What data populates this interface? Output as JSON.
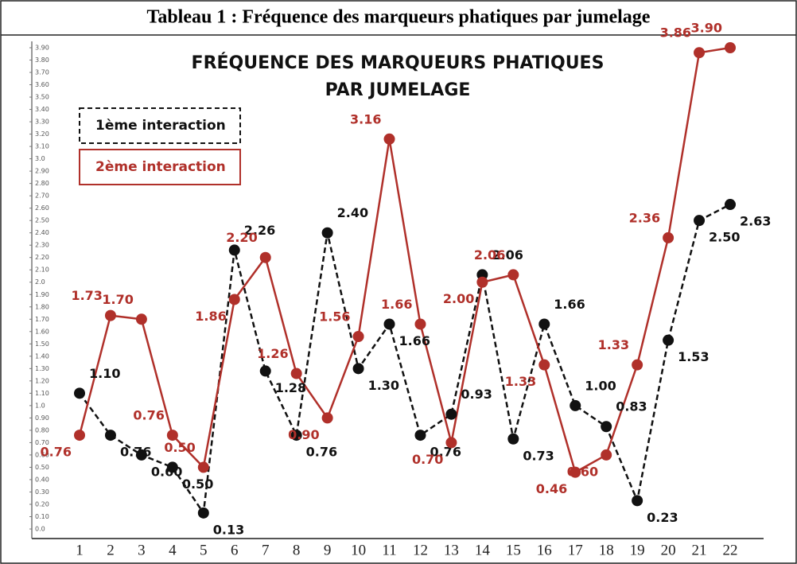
{
  "header": {
    "title": "Tableau 1 : Fréquence des marqueurs phatiques par jumelage"
  },
  "chart_data": {
    "type": "line",
    "title": [
      "FRÉQUENCE DES MARQUEURS PHATIQUES",
      "PAR JUMELAGE"
    ],
    "categories": [
      1,
      2,
      3,
      4,
      5,
      6,
      7,
      8,
      9,
      10,
      11,
      12,
      13,
      14,
      15,
      16,
      17,
      18,
      19,
      20,
      21,
      22
    ],
    "series": [
      {
        "name": "1ème interaction",
        "color": "#111111",
        "dashed": true,
        "values": [
          1.1,
          0.76,
          0.6,
          0.5,
          0.13,
          2.26,
          1.28,
          0.76,
          2.4,
          1.3,
          1.66,
          0.76,
          0.93,
          2.06,
          0.73,
          1.66,
          1.0,
          0.83,
          0.23,
          1.53,
          2.5,
          2.63
        ],
        "value_labels": [
          "1.10",
          "0.76",
          "0.60",
          "0.50",
          "0.13",
          "2.26",
          "1.28",
          "0.76",
          "2.40",
          "1.30",
          "1.66",
          "0.76",
          "0.93",
          "2.06",
          "0.73",
          "1.66",
          "1.00",
          "0.83",
          "0.23",
          "1.53",
          "2.50",
          "2.63"
        ]
      },
      {
        "name": "2ème interaction",
        "color": "#b0302a",
        "dashed": false,
        "values": [
          0.76,
          1.73,
          1.7,
          0.76,
          0.5,
          1.86,
          2.2,
          1.26,
          0.9,
          1.56,
          3.16,
          1.66,
          0.7,
          2.0,
          2.06,
          1.33,
          0.46,
          0.6,
          1.33,
          2.36,
          3.86,
          3.9
        ],
        "value_labels": [
          "0.76",
          "1.73",
          "1.70",
          "0.76",
          "0.50",
          "1.86",
          "2.20",
          "1.26",
          "0.90",
          "1.56",
          "3.16",
          "1.66",
          "0.70",
          "2.00",
          "2.06",
          "1.33",
          "0.46",
          "0.60",
          "1.33",
          "2.36",
          "3.86",
          "3.90"
        ]
      }
    ],
    "ylim": [
      0,
      3.9
    ],
    "yticks": [
      {
        "value": 0,
        "label": "0.0"
      },
      {
        "value": 0.1,
        "label": "0.10"
      },
      {
        "value": 0.2,
        "label": "0.20"
      },
      {
        "value": 0.3,
        "label": "0.30"
      },
      {
        "value": 0.4,
        "label": "0.40"
      },
      {
        "value": 0.5,
        "label": "0.50"
      },
      {
        "value": 0.6,
        "label": "0.60"
      },
      {
        "value": 0.7,
        "label": "0.70"
      },
      {
        "value": 0.8,
        "label": "0.80"
      },
      {
        "value": 0.9,
        "label": "0.90"
      },
      {
        "value": 1,
        "label": "1.0"
      },
      {
        "value": 1.1,
        "label": "1.10"
      },
      {
        "value": 1.2,
        "label": "1.20"
      },
      {
        "value": 1.3,
        "label": "1.30"
      },
      {
        "value": 1.4,
        "label": "1.40"
      },
      {
        "value": 1.5,
        "label": "1.50"
      },
      {
        "value": 1.6,
        "label": "1.60"
      },
      {
        "value": 1.7,
        "label": "1.70"
      },
      {
        "value": 1.8,
        "label": "1.80"
      },
      {
        "value": 1.9,
        "label": "1.90"
      },
      {
        "value": 2,
        "label": "2.0"
      },
      {
        "value": 2.1,
        "label": "2.10"
      },
      {
        "value": 2.2,
        "label": "2.20"
      },
      {
        "value": 2.3,
        "label": "2.30"
      },
      {
        "value": 2.4,
        "label": "2.40"
      },
      {
        "value": 2.5,
        "label": "2.50"
      },
      {
        "value": 2.6,
        "label": "2.60"
      },
      {
        "value": 2.7,
        "label": "2.70"
      },
      {
        "value": 2.8,
        "label": "2.80"
      },
      {
        "value": 2.9,
        "label": "2.90"
      },
      {
        "value": 3,
        "label": "3.0"
      },
      {
        "value": 3.1,
        "label": "3.10"
      },
      {
        "value": 3.2,
        "label": "3.20"
      },
      {
        "value": 3.3,
        "label": "3.30"
      },
      {
        "value": 3.4,
        "label": "3.40"
      },
      {
        "value": 3.5,
        "label": "3.50"
      },
      {
        "value": 3.6,
        "label": "3.60"
      },
      {
        "value": 3.7,
        "label": "3.70"
      },
      {
        "value": 3.8,
        "label": "3.80"
      },
      {
        "value": 3.9,
        "label": "3.90"
      }
    ],
    "legend": "upper left"
  }
}
